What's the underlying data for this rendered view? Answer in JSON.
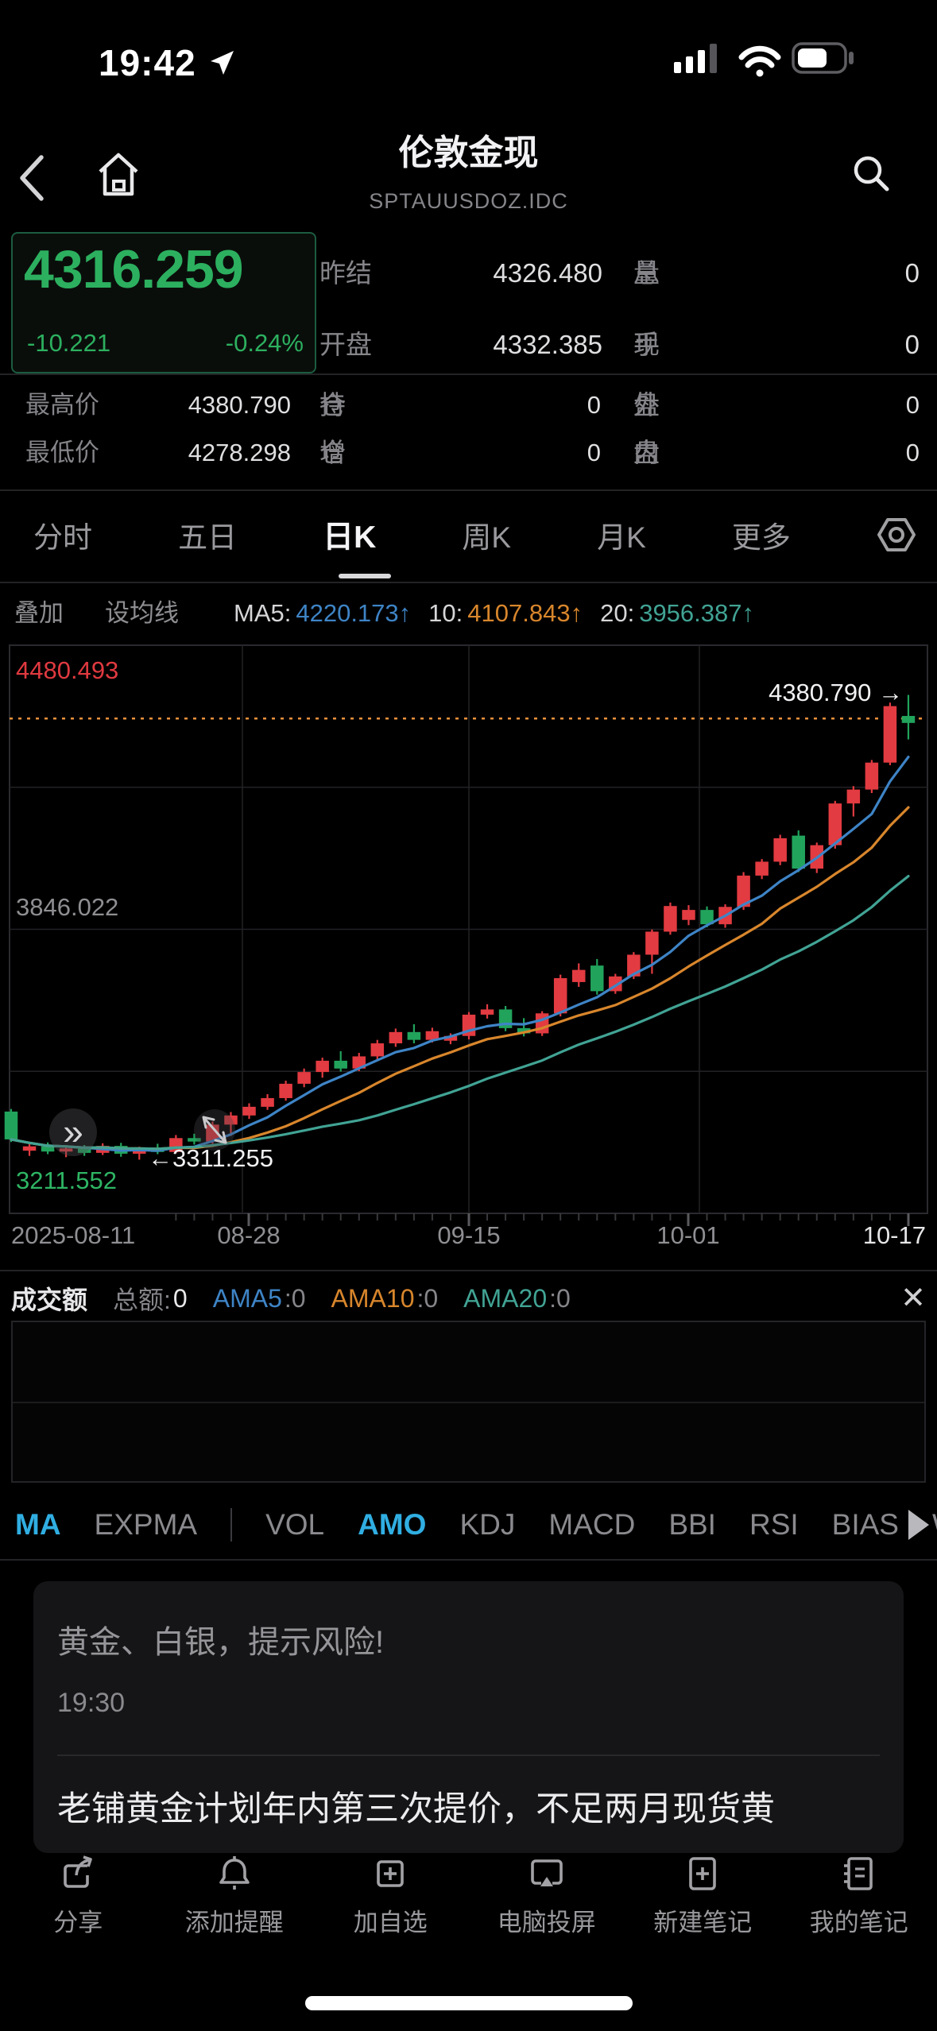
{
  "status_bar": {
    "time": "19:42",
    "battery_percent": 58
  },
  "header": {
    "title": "伦敦金现",
    "symbol": "SPTAUUSDOZ.IDC"
  },
  "quote": {
    "last_price": "4316.259",
    "change": "-10.221",
    "change_percent": "-0.24%",
    "down_color": "#2cb05f",
    "up_color": "#e23b41",
    "top_fields": [
      {
        "label": "昨结",
        "value": "4326.480"
      },
      {
        "label": "总量",
        "value": "0",
        "spread": true
      },
      {
        "label": "开盘",
        "value": "4332.385"
      },
      {
        "label": "现手",
        "value": "0",
        "spread": true
      }
    ],
    "detail_rows": [
      [
        {
          "label": "最高价",
          "value": "4380.790"
        },
        {
          "label": "持仓",
          "value": "0",
          "spread": true
        },
        {
          "label": "外盘",
          "value": "0",
          "spread": true
        }
      ],
      [
        {
          "label": "最低价",
          "value": "4278.298"
        },
        {
          "label": "增仓",
          "value": "0",
          "spread": true
        },
        {
          "label": "内盘",
          "value": "0",
          "spread": true
        }
      ]
    ]
  },
  "period_tabs": {
    "items": [
      "分时",
      "五日",
      "日K",
      "周K",
      "月K",
      "更多"
    ],
    "active": "日K"
  },
  "overlay_bar": {
    "buttons": [
      "叠加",
      "设均线"
    ],
    "ma_parts": [
      {
        "t": "MA5:",
        "c": "#d6d6d8"
      },
      {
        "t": "4220.173↑",
        "c": "#3e84c6"
      },
      {
        "t": "10:",
        "c": "#d6d6d8",
        "g": 1
      },
      {
        "t": "4107.843↑",
        "c": "#d8862c"
      },
      {
        "t": "20:",
        "c": "#d6d6d8",
        "g": 1
      },
      {
        "t": "3956.387↑",
        "c": "#41a394"
      }
    ]
  },
  "chart_data": {
    "type": "candlestick",
    "title": "伦敦金现 日K",
    "y_axis": {
      "top": 4480.493,
      "mid": 3846.022,
      "bottom": 3211.552,
      "labels": [
        {
          "text": "4480.493",
          "color": "#e03940"
        },
        {
          "text": "3846.022",
          "color": "#8f8f93"
        },
        {
          "text": "3211.552",
          "color": "#2eb564"
        }
      ]
    },
    "x_axis": {
      "labels": [
        "2025-08-11",
        "08-28",
        "09-15",
        "10-01",
        "10-17"
      ],
      "last_label_color": "#e6e6e8"
    },
    "prev_close": 4326.48,
    "markers": {
      "high": {
        "text": "4380.790 →",
        "value": 4380.79
      },
      "low": {
        "text": "←3311.255",
        "value": 3311.255
      }
    },
    "ma": {
      "windows": [
        5,
        10,
        20
      ],
      "colors": [
        "#3e84c6",
        "#d8862c",
        "#41a394"
      ],
      "current": [
        "4220.173",
        "4107.843",
        "3956.387"
      ]
    },
    "colors": {
      "up": "#e23b41",
      "down": "#21a35c",
      "grid": "#222226",
      "border": "#2a2a2e",
      "prev_close_line": "#f0923c"
    },
    "candles": [
      [
        "08-11",
        3422,
        3428,
        3352,
        3358
      ],
      [
        "08-12",
        3332,
        3352,
        3320,
        3342
      ],
      [
        "08-13",
        3342,
        3351,
        3324,
        3330
      ],
      [
        "08-14",
        3330,
        3343,
        3317,
        3337
      ],
      [
        "08-15",
        3337,
        3345,
        3320,
        3327
      ],
      [
        "08-18",
        3327,
        3349,
        3322,
        3343
      ],
      [
        "08-19",
        3343,
        3350,
        3318,
        3325
      ],
      [
        "08-20",
        3325,
        3341,
        3311.255,
        3336
      ],
      [
        "08-21",
        3336,
        3348,
        3324,
        3329
      ],
      [
        "08-22",
        3329,
        3368,
        3326,
        3361
      ],
      [
        "08-25",
        3361,
        3371,
        3346,
        3353
      ],
      [
        "08-26",
        3353,
        3399,
        3348,
        3392
      ],
      [
        "08-27",
        3392,
        3421,
        3366,
        3413
      ],
      [
        "08-28",
        3413,
        3441,
        3405,
        3433
      ],
      [
        "08-29",
        3433,
        3462,
        3426,
        3453
      ],
      [
        "09-01",
        3453,
        3493,
        3447,
        3486
      ],
      [
        "09-02",
        3486,
        3521,
        3478,
        3513
      ],
      [
        "09-03",
        3513,
        3546,
        3500,
        3539
      ],
      [
        "09-04",
        3539,
        3561,
        3514,
        3521
      ],
      [
        "09-05",
        3521,
        3557,
        3515,
        3549
      ],
      [
        "09-08",
        3549,
        3587,
        3541,
        3579
      ],
      [
        "09-09",
        3579,
        3613,
        3571,
        3605
      ],
      [
        "09-10",
        3605,
        3623,
        3579,
        3587
      ],
      [
        "09-11",
        3587,
        3615,
        3581,
        3607
      ],
      [
        "09-12",
        3585,
        3602,
        3577,
        3596
      ],
      [
        "09-15",
        3596,
        3651,
        3588,
        3645
      ],
      [
        "09-16",
        3645,
        3669,
        3636,
        3657
      ],
      [
        "09-17",
        3657,
        3665,
        3607,
        3614
      ],
      [
        "09-18",
        3614,
        3637,
        3595,
        3602
      ],
      [
        "09-19",
        3602,
        3653,
        3596,
        3648
      ],
      [
        "09-22",
        3648,
        3737,
        3641,
        3729
      ],
      [
        "09-23",
        3720,
        3763,
        3709,
        3748
      ],
      [
        "09-24",
        3758,
        3773,
        3691,
        3699
      ],
      [
        "09-25",
        3699,
        3739,
        3693,
        3733
      ],
      [
        "09-26",
        3733,
        3789,
        3727,
        3783
      ],
      [
        "09-29",
        3783,
        3841,
        3739,
        3836
      ],
      [
        "09-30",
        3836,
        3903,
        3829,
        3895
      ],
      [
        "10-01",
        3863,
        3897,
        3851,
        3886
      ],
      [
        "10-02",
        3886,
        3894,
        3846,
        3853
      ],
      [
        "10-03",
        3853,
        3899,
        3845,
        3893
      ],
      [
        "10-06",
        3893,
        3973,
        3886,
        3965
      ],
      [
        "10-07",
        3965,
        4003,
        3957,
        3997
      ],
      [
        "10-08",
        3997,
        4059,
        3989,
        4051
      ],
      [
        "10-09",
        4057,
        4069,
        3973,
        3981
      ],
      [
        "10-10",
        3981,
        4041,
        3971,
        4035
      ],
      [
        "10-13",
        4035,
        4137,
        4027,
        4131
      ],
      [
        "10-14",
        4131,
        4171,
        4101,
        4163
      ],
      [
        "10-15",
        4163,
        4231,
        4155,
        4225
      ],
      [
        "10-16",
        4225,
        4363,
        4219,
        4355
      ],
      [
        "10-17",
        4332.385,
        4380.79,
        4278.298,
        4316.259
      ]
    ]
  },
  "volume_panel": {
    "parts": [
      {
        "t": "成交额",
        "c": "#e8e8ea",
        "b": 1
      },
      {
        "t": "总额:",
        "c": "#85858a",
        "g": 1
      },
      {
        "t": "0",
        "c": "#e8e8ea"
      },
      {
        "t": "AMA5",
        "c": "#3e84c6",
        "g": 1
      },
      {
        "t": ":0",
        "c": "#85858a"
      },
      {
        "t": "AMA10",
        "c": "#d8862c",
        "g": 1
      },
      {
        "t": ":0",
        "c": "#85858a"
      },
      {
        "t": "AMA20",
        "c": "#41a394",
        "g": 1
      },
      {
        "t": ":0",
        "c": "#85858a"
      }
    ],
    "close_label": "✕"
  },
  "indicator_tabs": {
    "items": [
      {
        "label": "MA",
        "active": true
      },
      {
        "label": "EXPMA"
      },
      {
        "label": "VOL"
      },
      {
        "label": "AMO",
        "active": true
      },
      {
        "label": "KDJ"
      },
      {
        "label": "MACD"
      },
      {
        "label": "BBI"
      },
      {
        "label": "RSI"
      },
      {
        "label": "BIAS"
      },
      {
        "label": "W&"
      }
    ],
    "active_color": "#30aee2"
  },
  "news": {
    "title": "黄金、白银，提示风险!",
    "time": "19:30",
    "headline": "老铺黄金计划年内第三次提价，不足两月现货黄"
  },
  "toolbar": {
    "items": [
      {
        "label": "分享",
        "icon": "share-icon"
      },
      {
        "label": "添加提醒",
        "icon": "bell-icon"
      },
      {
        "label": "加自选",
        "icon": "add-watchlist-icon"
      },
      {
        "label": "电脑投屏",
        "icon": "screen-mirror-icon"
      },
      {
        "label": "新建笔记",
        "icon": "new-note-icon"
      },
      {
        "label": "我的笔记",
        "icon": "my-notes-icon"
      }
    ]
  }
}
